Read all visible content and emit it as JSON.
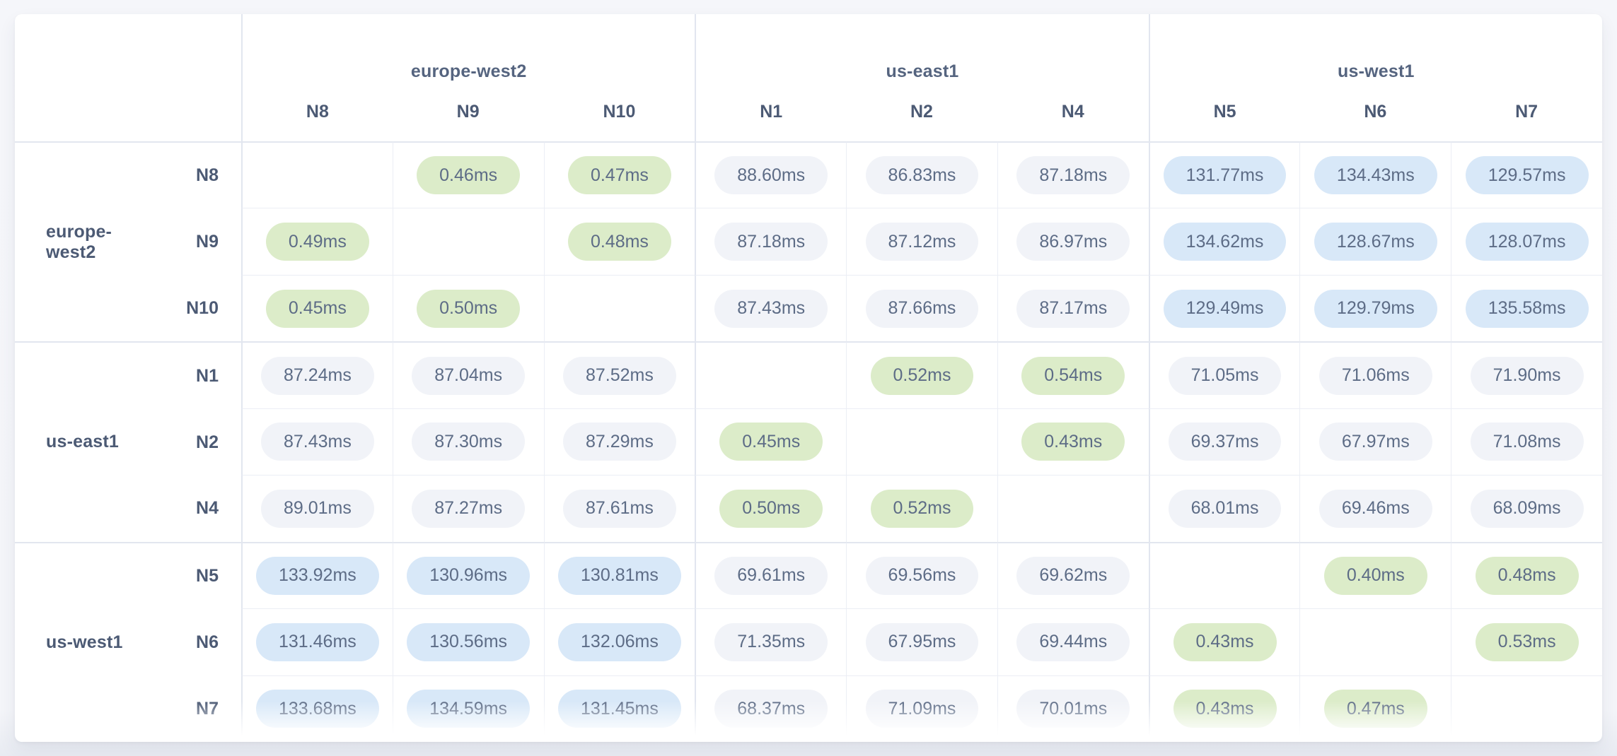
{
  "regions": [
    {
      "name": "europe-west2",
      "nodes": [
        "N8",
        "N9",
        "N10"
      ]
    },
    {
      "name": "us-east1",
      "nodes": [
        "N1",
        "N2",
        "N4"
      ]
    },
    {
      "name": "us-west1",
      "nodes": [
        "N5",
        "N6",
        "N7"
      ]
    }
  ],
  "chart_data": {
    "type": "heatmap",
    "title": "",
    "unit": "ms",
    "rows": [
      "N8",
      "N9",
      "N10",
      "N1",
      "N2",
      "N4",
      "N5",
      "N6",
      "N7"
    ],
    "cols": [
      "N8",
      "N9",
      "N10",
      "N1",
      "N2",
      "N4",
      "N5",
      "N6",
      "N7"
    ],
    "row_groups": [
      "europe-west2",
      "europe-west2",
      "europe-west2",
      "us-east1",
      "us-east1",
      "us-east1",
      "us-west1",
      "us-west1",
      "us-west1"
    ],
    "col_groups": [
      "europe-west2",
      "europe-west2",
      "europe-west2",
      "us-east1",
      "us-east1",
      "us-east1",
      "us-west1",
      "us-west1",
      "us-west1"
    ],
    "values_ms": [
      [
        null,
        0.46,
        0.47,
        88.6,
        86.83,
        87.18,
        131.77,
        134.43,
        129.57
      ],
      [
        0.49,
        null,
        0.48,
        87.18,
        87.12,
        86.97,
        134.62,
        128.67,
        128.07
      ],
      [
        0.45,
        0.5,
        null,
        87.43,
        87.66,
        87.17,
        129.49,
        129.79,
        135.58
      ],
      [
        87.24,
        87.04,
        87.52,
        null,
        0.52,
        0.54,
        71.05,
        71.06,
        71.9
      ],
      [
        87.43,
        87.3,
        87.29,
        0.45,
        null,
        0.43,
        69.37,
        67.97,
        71.08
      ],
      [
        89.01,
        87.27,
        87.61,
        0.5,
        0.52,
        null,
        68.01,
        69.46,
        68.09
      ],
      [
        133.92,
        130.96,
        130.81,
        69.61,
        69.56,
        69.62,
        null,
        0.4,
        0.48
      ],
      [
        131.46,
        130.56,
        132.06,
        71.35,
        67.95,
        69.44,
        0.43,
        null,
        0.53
      ],
      [
        133.68,
        134.59,
        131.45,
        68.37,
        71.09,
        70.01,
        0.43,
        0.47,
        null
      ]
    ]
  },
  "thresholds": {
    "green_below_ms": 1,
    "blue_at_or_above_ms": 100
  },
  "colors": {
    "pill_green": "#dcecc9",
    "pill_blue": "#d8e8f8",
    "pill_gray": "#f1f3f8",
    "pill_text": "#5d6c86",
    "label_text": "#4c5a74",
    "grid_line_thin": "#ebeef5",
    "grid_line_group": "#e2e6ef",
    "card_background": "#ffffff",
    "page_background": "#f5f6fa"
  }
}
